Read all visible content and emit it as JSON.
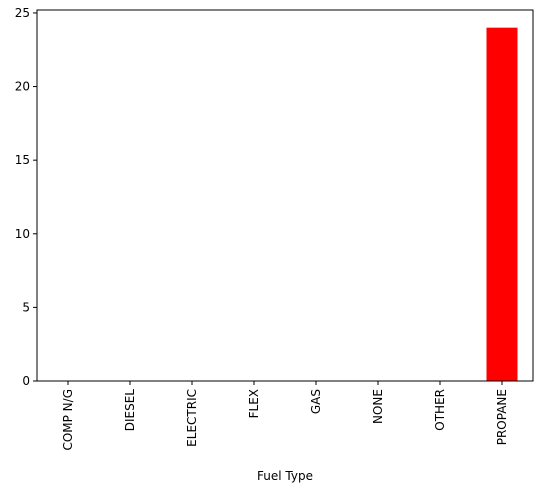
{
  "chart_data": {
    "type": "bar",
    "categories": [
      "COMP N/G",
      "DIESEL",
      "ELECTRIC",
      "FLEX",
      "GAS",
      "NONE",
      "OTHER",
      "PROPANE"
    ],
    "values": [
      0,
      0,
      0,
      0,
      0,
      0,
      0,
      24
    ],
    "title": "",
    "xlabel": "Fuel Type",
    "ylabel": "",
    "ylim": [
      0,
      25.2
    ],
    "yticks": [
      0,
      5,
      10,
      15,
      20,
      25
    ],
    "grid": false,
    "legend": "none",
    "bar_color": "#ff0000"
  }
}
